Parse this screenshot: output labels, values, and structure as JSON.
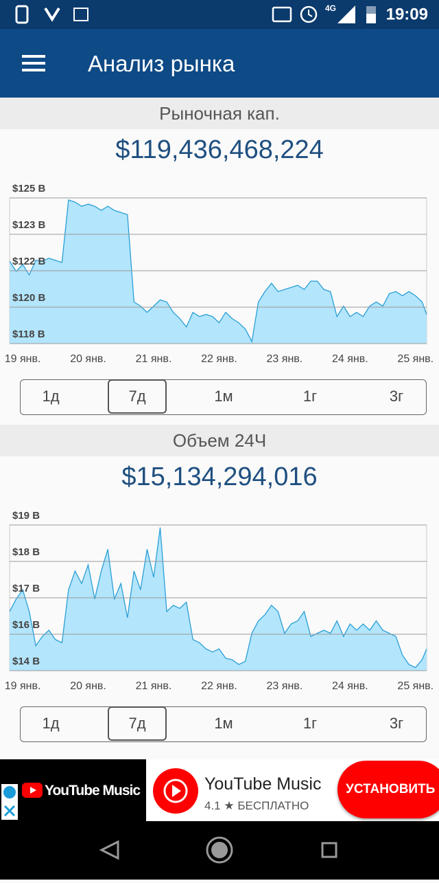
{
  "status_bar": {
    "time": "19:09",
    "network": "4G"
  },
  "app_bar": {
    "title": "Анализ рынка"
  },
  "chart_data": [
    {
      "type": "area",
      "title": "Рыночная кап.",
      "subtitle": "$119,436,468,224",
      "x": [
        -0.2,
        -0.1,
        0,
        0.1,
        0.2,
        0.3,
        0.4,
        0.5,
        0.6,
        0.7,
        0.8,
        0.9,
        1,
        1.1,
        1.2,
        1.3,
        1.4,
        1.5,
        1.6,
        1.7,
        1.8,
        1.9,
        2,
        2.1,
        2.2,
        2.3,
        2.4,
        2.5,
        2.6,
        2.7,
        2.8,
        2.9,
        3,
        3.1,
        3.2,
        3.3,
        3.4,
        3.5,
        3.6,
        3.7,
        3.8,
        3.9,
        4,
        4.1,
        4.2,
        4.3,
        4.4,
        4.5,
        4.6,
        4.7,
        4.8,
        4.9,
        5,
        5.1,
        5.2,
        5.3,
        5.4,
        5.5,
        5.6,
        5.7,
        5.8,
        5.9,
        6,
        6.1,
        6.17
      ],
      "values": [
        121.96,
        121.47,
        121.8,
        121.3,
        122.0,
        121.96,
        122.1,
        122.0,
        121.9,
        124.9,
        124.8,
        124.6,
        124.7,
        124.6,
        124.4,
        124.6,
        124.4,
        124.3,
        124.2,
        120.0,
        119.8,
        119.5,
        119.8,
        120.1,
        120.0,
        119.5,
        119.2,
        118.8,
        119.5,
        119.3,
        119.4,
        119.3,
        119.0,
        119.5,
        119.2,
        119.0,
        118.7,
        118.1,
        120.0,
        120.5,
        120.9,
        120.5,
        120.6,
        120.7,
        120.8,
        120.6,
        121.0,
        121.0,
        120.6,
        120.5,
        119.3,
        119.8,
        119.3,
        119.5,
        119.3,
        119.8,
        120.0,
        119.8,
        120.4,
        120.5,
        120.3,
        120.5,
        120.3,
        120.0,
        119.4
      ],
      "xlim": [
        -0.2,
        6.17
      ],
      "xticks": [
        {
          "value": 0,
          "label": "19 янв."
        },
        {
          "value": 1,
          "label": "20 янв."
        },
        {
          "value": 2,
          "label": "21 янв."
        },
        {
          "value": 3,
          "label": "22 янв."
        },
        {
          "value": 4,
          "label": "23 янв."
        },
        {
          "value": 5,
          "label": "24 янв."
        },
        {
          "value": 6,
          "label": "25 янв."
        }
      ],
      "ylim": [
        118,
        125
      ],
      "yticks": [
        {
          "value": 118,
          "label": "$118 B"
        },
        {
          "value": 119.75,
          "label": "$120 B"
        },
        {
          "value": 121.5,
          "label": "$122 B"
        },
        {
          "value": 123.25,
          "label": "$123 B"
        },
        {
          "value": 125,
          "label": "$125 B"
        }
      ],
      "line_color": "#2a9fd6",
      "area_color": "#b3e5fc",
      "grid": true,
      "ranges": [
        "1д",
        "7д",
        "1м",
        "1г",
        "3г"
      ],
      "selected_range": 1
    },
    {
      "type": "area",
      "title": "Объем 24Ч",
      "subtitle": "$15,134,294,016",
      "x": [
        -0.2,
        -0.1,
        0,
        0.1,
        0.2,
        0.3,
        0.4,
        0.5,
        0.6,
        0.7,
        0.8,
        0.9,
        1,
        1.1,
        1.2,
        1.3,
        1.4,
        1.5,
        1.6,
        1.7,
        1.8,
        1.9,
        2,
        2.1,
        2.2,
        2.3,
        2.4,
        2.5,
        2.6,
        2.7,
        2.8,
        2.9,
        3,
        3.1,
        3.2,
        3.3,
        3.4,
        3.5,
        3.6,
        3.7,
        3.8,
        3.9,
        4,
        4.1,
        4.2,
        4.3,
        4.4,
        4.5,
        4.6,
        4.7,
        4.8,
        4.9,
        5,
        5.1,
        5.2,
        5.3,
        5.4,
        5.5,
        5.6,
        5.7,
        5.8,
        5.9,
        6,
        6.1,
        6.17
      ],
      "values": [
        16.3,
        16.7,
        17.0,
        16.3,
        15.2,
        15.5,
        15.7,
        15.4,
        15.3,
        17.0,
        17.6,
        17.2,
        17.8,
        16.7,
        17.6,
        18.3,
        16.7,
        17.2,
        16.1,
        17.6,
        17.0,
        18.3,
        17.4,
        19.0,
        16.3,
        16.5,
        16.4,
        16.6,
        15.4,
        15.3,
        15.1,
        15.0,
        15.1,
        14.8,
        14.75,
        14.6,
        14.7,
        15.6,
        16.0,
        16.2,
        16.5,
        16.3,
        15.6,
        15.9,
        16.0,
        16.3,
        15.5,
        15.6,
        15.7,
        15.6,
        16.0,
        15.5,
        15.9,
        15.7,
        15.9,
        15.7,
        16.0,
        15.7,
        15.6,
        15.5,
        14.9,
        14.6,
        14.5,
        14.75,
        15.1
      ],
      "xlim": [
        -0.2,
        6.17
      ],
      "xticks": [
        {
          "value": 0,
          "label": "19 янв."
        },
        {
          "value": 1,
          "label": "20 янв."
        },
        {
          "value": 2,
          "label": "21 янв."
        },
        {
          "value": 3,
          "label": "22 янв."
        },
        {
          "value": 4,
          "label": "23 янв."
        },
        {
          "value": 5,
          "label": "24 янв."
        },
        {
          "value": 6,
          "label": "25 янв."
        }
      ],
      "ylim": [
        14.4,
        19.08
      ],
      "yticks": [
        {
          "value": 14.4,
          "label": "$14 B"
        },
        {
          "value": 15.57,
          "label": "$16 B"
        },
        {
          "value": 16.74,
          "label": "$17 B"
        },
        {
          "value": 17.91,
          "label": "$18 B"
        },
        {
          "value": 19.08,
          "label": "$19 B"
        }
      ],
      "line_color": "#2a9fd6",
      "area_color": "#b3e5fc",
      "grid": true,
      "ranges": [
        "1д",
        "7д",
        "1м",
        "1г",
        "3г"
      ],
      "selected_range": 1
    }
  ],
  "ad": {
    "brand": "YouTube Music",
    "app_name": "YouTube Music",
    "rating": 4.1,
    "price": "БЕСПЛАТНО",
    "button": "УСТАНОВИТЬ"
  }
}
